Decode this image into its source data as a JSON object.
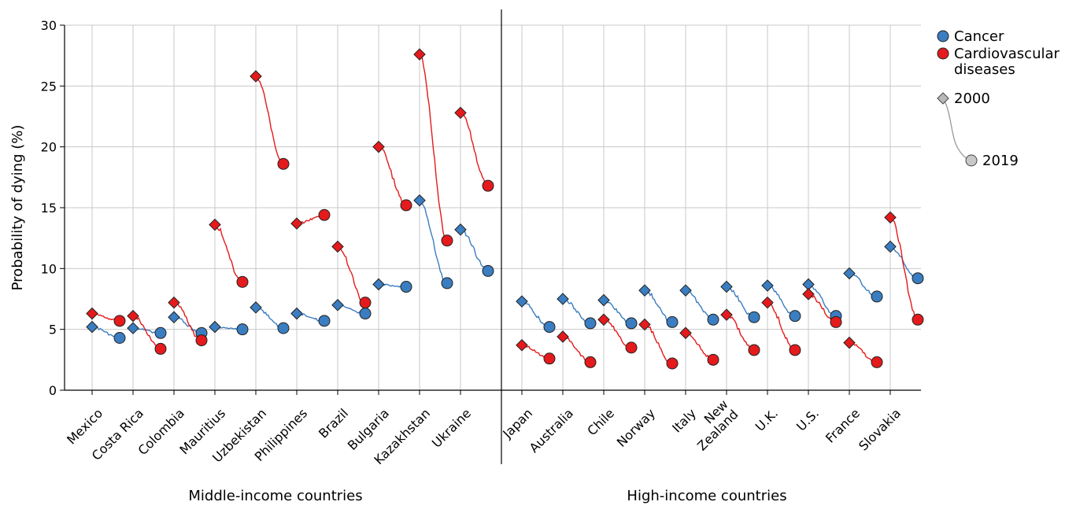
{
  "chart_data": {
    "type": "line",
    "ylabel": "Probability of dying (%)",
    "ylim": [
      0,
      30
    ],
    "yticks": [
      0,
      5,
      10,
      15,
      20,
      25,
      30
    ],
    "grid": true,
    "legend_position": "top-right",
    "groups": [
      {
        "label": "Middle-income countries",
        "start": 0,
        "end": 9
      },
      {
        "label": "High-income countries",
        "start": 10,
        "end": 19
      }
    ],
    "countries": [
      {
        "label": "Mexico",
        "cancer": [
          5.2,
          4.3
        ],
        "cvd": [
          6.3,
          5.7
        ]
      },
      {
        "label": "Costa Rica",
        "cancer": [
          5.1,
          4.7
        ],
        "cvd": [
          6.1,
          3.4
        ]
      },
      {
        "label": "Colombia",
        "cancer": [
          6.0,
          4.7
        ],
        "cvd": [
          7.2,
          4.1
        ]
      },
      {
        "label": "Mauritius",
        "cancer": [
          5.2,
          5.0
        ],
        "cvd": [
          13.6,
          8.9
        ]
      },
      {
        "label": "Uzbekistan",
        "cancer": [
          6.8,
          5.1
        ],
        "cvd": [
          25.8,
          18.6
        ]
      },
      {
        "label": "Philippines",
        "cancer": [
          6.3,
          5.7
        ],
        "cvd": [
          13.7,
          14.4
        ]
      },
      {
        "label": "Brazil",
        "cancer": [
          7.0,
          6.3
        ],
        "cvd": [
          11.8,
          7.2
        ]
      },
      {
        "label": "Bulgaria",
        "cancer": [
          8.7,
          8.5
        ],
        "cvd": [
          20.0,
          15.2
        ]
      },
      {
        "label": "Kazakhstan",
        "cancer": [
          15.6,
          8.8
        ],
        "cvd": [
          27.6,
          12.3
        ]
      },
      {
        "label": "Ukraine",
        "cancer": [
          13.2,
          9.8
        ],
        "cvd": [
          22.8,
          16.8
        ]
      },
      {
        "label": "Japan",
        "cancer": [
          7.3,
          5.2
        ],
        "cvd": [
          3.7,
          2.6
        ]
      },
      {
        "label": "Australia",
        "cancer": [
          7.5,
          5.5
        ],
        "cvd": [
          4.4,
          2.3
        ]
      },
      {
        "label": "Chile",
        "cancer": [
          7.4,
          5.5
        ],
        "cvd": [
          5.8,
          3.5
        ]
      },
      {
        "label": "Norway",
        "cancer": [
          8.2,
          5.6
        ],
        "cvd": [
          5.4,
          2.2
        ]
      },
      {
        "label": "Italy",
        "cancer": [
          8.2,
          5.8
        ],
        "cvd": [
          4.7,
          2.5
        ]
      },
      {
        "label": "New\nZealand",
        "cancer": [
          8.5,
          6.0
        ],
        "cvd": [
          6.2,
          3.3
        ]
      },
      {
        "label": "U.K.",
        "cancer": [
          8.6,
          6.1
        ],
        "cvd": [
          7.2,
          3.3
        ]
      },
      {
        "label": "U.S.",
        "cancer": [
          8.7,
          6.1
        ],
        "cvd": [
          7.9,
          5.6
        ]
      },
      {
        "label": "France",
        "cancer": [
          9.6,
          7.7
        ],
        "cvd": [
          3.9,
          2.3
        ]
      },
      {
        "label": "Slovakia",
        "cancer": [
          11.8,
          9.2
        ],
        "cvd": [
          14.2,
          5.8
        ]
      }
    ],
    "series": [
      {
        "name": "Cancer",
        "key": "cancer",
        "color": "#3a7dc0"
      },
      {
        "name": "Cardiovascular\ndiseases",
        "key": "cvd",
        "color": "#e41a1c"
      }
    ],
    "legend_years": [
      "2000",
      "2019"
    ]
  }
}
